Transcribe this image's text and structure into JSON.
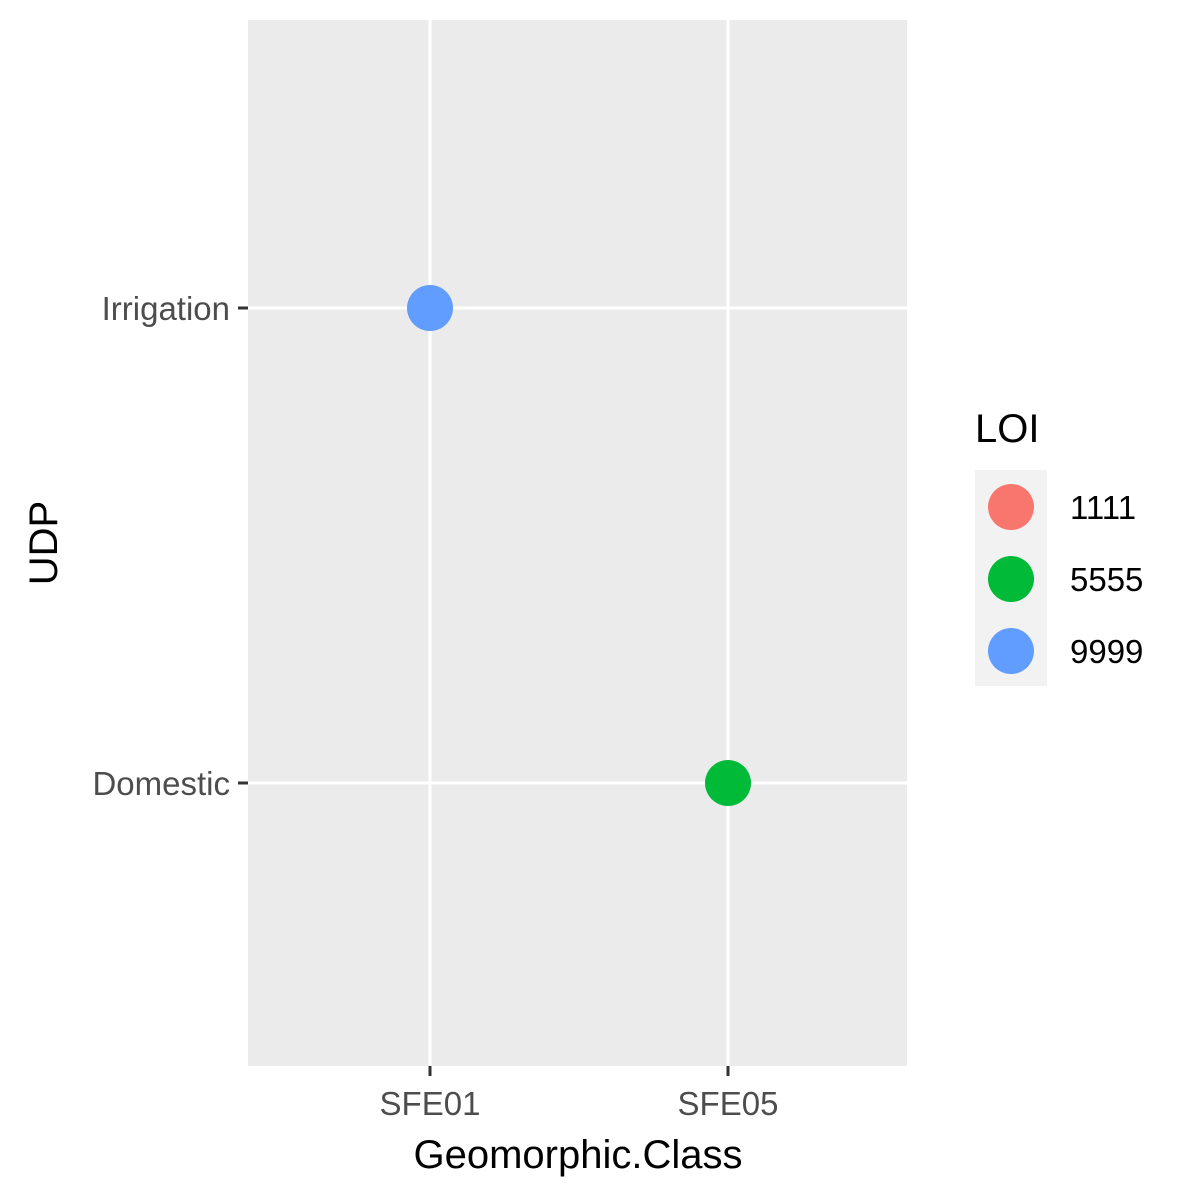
{
  "chart_data": {
    "type": "scatter",
    "xlabel": "Geomorphic.Class",
    "ylabel": "UDP",
    "x_categories": [
      "SFE01",
      "SFE05"
    ],
    "y_categories": [
      "Domestic",
      "Irrigation"
    ],
    "points": [
      {
        "x": "SFE01",
        "y": "Irrigation",
        "group": "9999"
      },
      {
        "x": "SFE05",
        "y": "Domestic",
        "group": "5555"
      }
    ],
    "legend": {
      "title": "LOI",
      "entries": [
        {
          "label": "1111",
          "color": "#F8766D"
        },
        {
          "label": "5555",
          "color": "#00BA38"
        },
        {
          "label": "9999",
          "color": "#619CFF"
        }
      ],
      "placement": "right"
    },
    "panel_background": "#EBEBEB",
    "grid": true
  }
}
